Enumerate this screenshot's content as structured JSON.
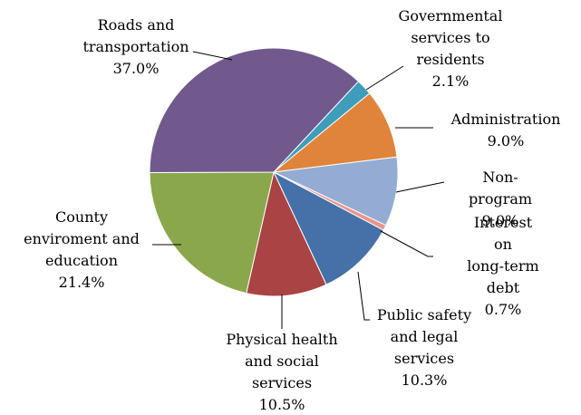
{
  "chart_data": {
    "type": "pie",
    "startangle": 43,
    "categories": [
      "Governmental\nservices to\nresidents",
      "Administration",
      "Non-program",
      "Interest on\nlong-term debt",
      "Public safety\nand legal\nservices",
      "Physical health\nand social\nservices",
      "County\nenviroment and\neducation",
      "Roads and\ntransportation"
    ],
    "values": [
      2.1,
      9.0,
      9.0,
      0.7,
      10.3,
      10.5,
      21.4,
      37.0
    ],
    "value_labels": [
      "2.1%",
      "9.0%",
      "9.0%",
      "0.7%",
      "10.3%",
      "10.5%",
      "21.4%",
      "37.0%"
    ],
    "colors": [
      "#3e9dbb",
      "#e0843b",
      "#94abd4",
      "#e8958c",
      "#4570a8",
      "#aa4343",
      "#8aa84b",
      "#71598e"
    ]
  }
}
